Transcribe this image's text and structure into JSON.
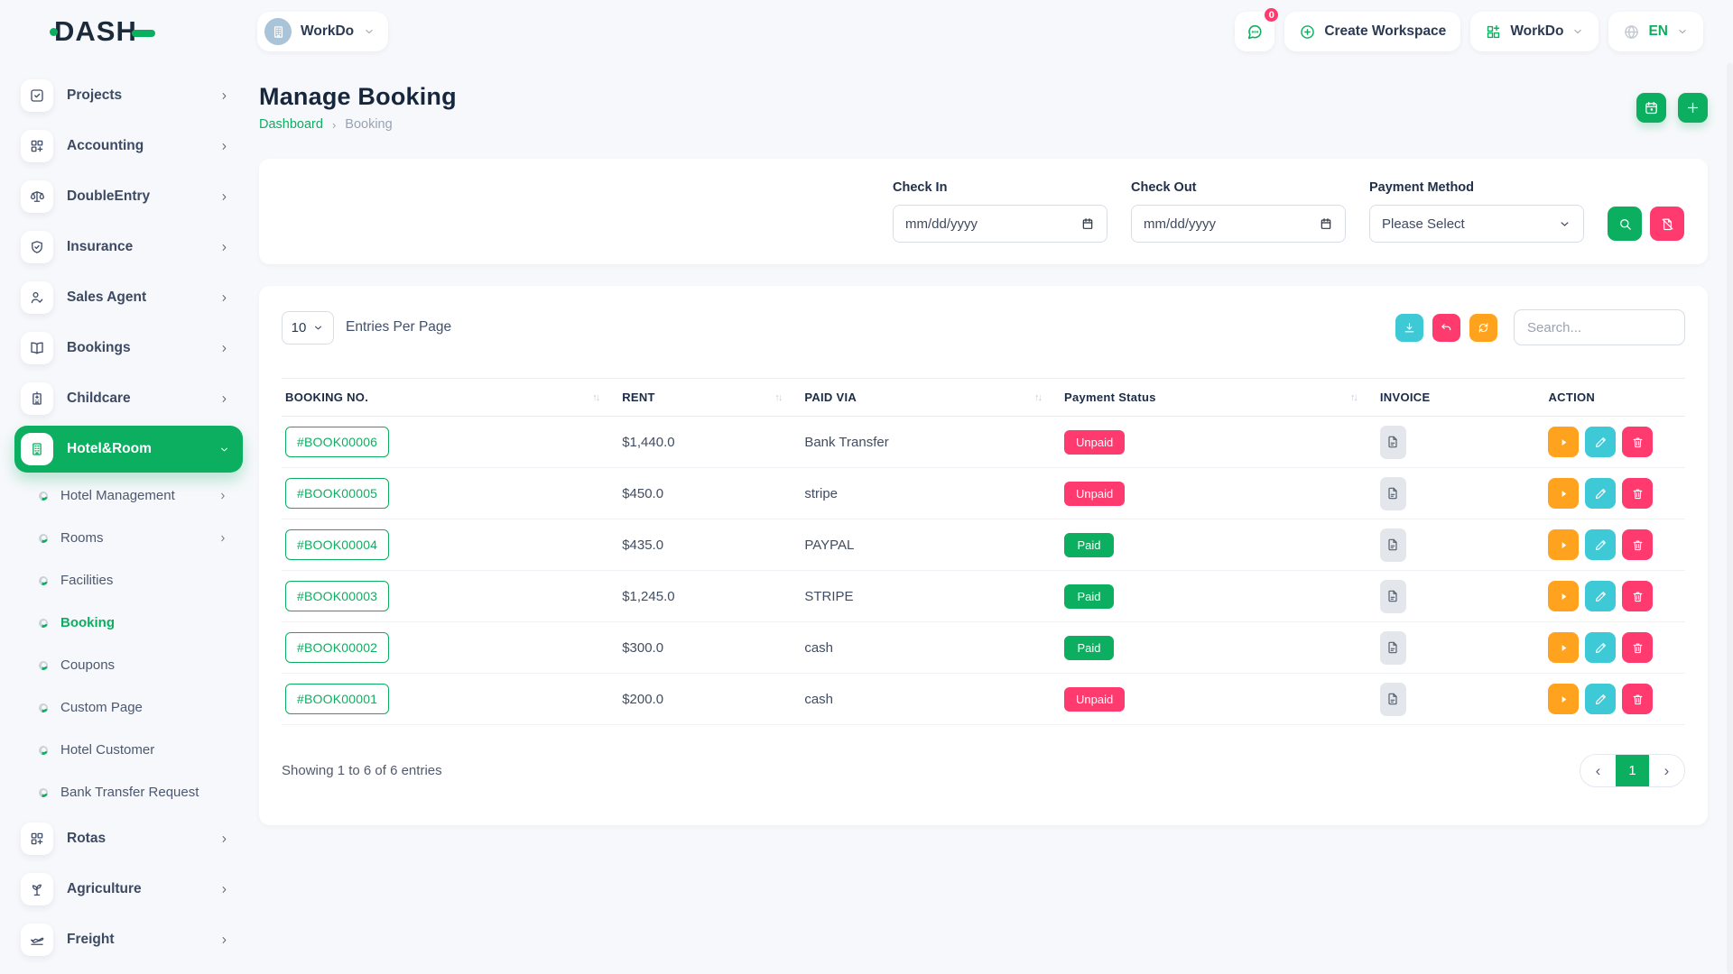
{
  "colors": {
    "primary": "#0caf60",
    "danger": "#ff3a6e",
    "info": "#3ec9d6",
    "warning": "#ffa21d"
  },
  "brand": {
    "logo_text": "DASH"
  },
  "topbar": {
    "workspace_selector": {
      "label": "WorkDo",
      "icon": "building-icon"
    },
    "messages_button": {
      "icon": "chat-icon",
      "badge_count": "0"
    },
    "create_workspace_button": {
      "label": "Create Workspace",
      "icon": "plus-circle-icon"
    },
    "workdo_menu": {
      "label": "WorkDo",
      "icon": "grid-icon"
    },
    "language_menu": {
      "label": "EN",
      "icon": "globe-icon"
    }
  },
  "sidebar": {
    "items": [
      {
        "type": "top",
        "icon": "check-square",
        "label": "Projects",
        "chevron": true
      },
      {
        "type": "top",
        "icon": "grid-plus",
        "label": "Accounting",
        "chevron": true
      },
      {
        "type": "top",
        "icon": "scale",
        "label": "DoubleEntry",
        "chevron": true
      },
      {
        "type": "top",
        "icon": "shield-check",
        "label": "Insurance",
        "chevron": true
      },
      {
        "type": "top",
        "icon": "user-check",
        "label": "Sales Agent",
        "chevron": true
      },
      {
        "type": "top",
        "icon": "book-open",
        "label": "Bookings",
        "chevron": true
      },
      {
        "type": "top",
        "icon": "building-plus",
        "label": "Childcare",
        "chevron": true
      },
      {
        "type": "top",
        "icon": "building",
        "label": "Hotel&Room",
        "active": true,
        "expanded": true
      },
      {
        "type": "sub",
        "label": "Hotel Management",
        "chevron": true
      },
      {
        "type": "sub",
        "label": "Rooms",
        "chevron": true
      },
      {
        "type": "sub",
        "label": "Facilities"
      },
      {
        "type": "sub",
        "label": "Booking",
        "active": true
      },
      {
        "type": "sub",
        "label": "Coupons"
      },
      {
        "type": "sub",
        "label": "Custom Page"
      },
      {
        "type": "sub",
        "label": "Hotel Customer"
      },
      {
        "type": "sub",
        "label": "Bank Transfer Request"
      },
      {
        "type": "top",
        "icon": "grid-plus",
        "label": "Rotas",
        "chevron": true
      },
      {
        "type": "top",
        "icon": "seedling",
        "label": "Agriculture",
        "chevron": true
      },
      {
        "type": "top",
        "icon": "plane",
        "label": "Freight",
        "chevron": true
      }
    ]
  },
  "page_header": {
    "title": "Manage Booking",
    "breadcrumb": {
      "home": "Dashboard",
      "separator": "›",
      "current": "Booking"
    }
  },
  "filter_panel": {
    "check_in_label": "Check In",
    "check_out_label": "Check Out",
    "date_placeholder": "mm/dd/yyyy",
    "payment_method_label": "Payment Method",
    "payment_method_value": "Please Select"
  },
  "table_controls": {
    "entries_per_page_value": "10",
    "entries_per_page_label": "Entries Per Page",
    "search_placeholder": "Search..."
  },
  "table": {
    "columns": [
      {
        "label": "BOOKING NO.",
        "sortable": true
      },
      {
        "label": "RENT",
        "sortable": true
      },
      {
        "label": "PAID VIA",
        "sortable": true
      },
      {
        "label": "Payment Status",
        "sortable": true
      },
      {
        "label": "INVOICE",
        "sortable": false
      },
      {
        "label": "ACTION",
        "sortable": false
      }
    ],
    "rows": [
      {
        "booking_no": "#BOOK00006",
        "rent": "$1,440.0",
        "paid_via": "Bank Transfer",
        "status": "Unpaid"
      },
      {
        "booking_no": "#BOOK00005",
        "rent": "$450.0",
        "paid_via": "stripe",
        "status": "Unpaid"
      },
      {
        "booking_no": "#BOOK00004",
        "rent": "$435.0",
        "paid_via": "PAYPAL",
        "status": "Paid"
      },
      {
        "booking_no": "#BOOK00003",
        "rent": "$1,245.0",
        "paid_via": "STRIPE",
        "status": "Paid"
      },
      {
        "booking_no": "#BOOK00002",
        "rent": "$300.0",
        "paid_via": "cash",
        "status": "Paid"
      },
      {
        "booking_no": "#BOOK00001",
        "rent": "$200.0",
        "paid_via": "cash",
        "status": "Unpaid"
      }
    ]
  },
  "table_footer": {
    "showing_text": "Showing 1 to 6 of 6 entries",
    "pagination": {
      "prev": "‹",
      "current_page": "1",
      "next": "›"
    }
  }
}
